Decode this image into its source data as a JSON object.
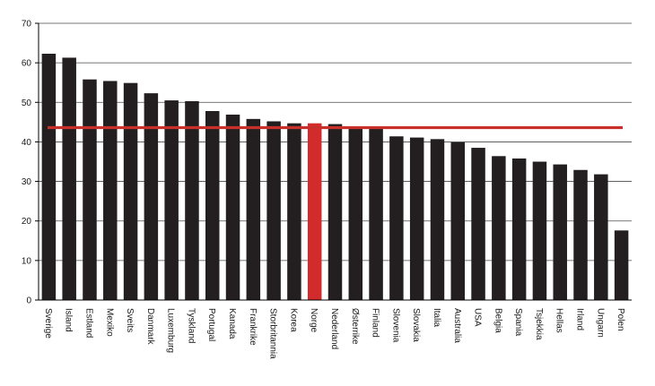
{
  "chart_data": {
    "type": "bar",
    "categories": [
      "Sverige",
      "Island",
      "Estland",
      "Mexiko",
      "Sveits",
      "Danmark",
      "Luxemburg",
      "Tyskland",
      "Portugal",
      "Kanada",
      "Frankrike",
      "Storbritannia",
      "Korea",
      "Norge",
      "Nederland",
      "Østerrike",
      "Finland",
      "Slovenia",
      "Slovakia",
      "Italia",
      "Australia",
      "USA",
      "Belgia",
      "Spania",
      "Tsjekkia",
      "Hellas",
      "Irland",
      "Ungarn",
      "Polen"
    ],
    "values": [
      62.3,
      61.3,
      55.8,
      55.4,
      54.9,
      52.3,
      50.5,
      50.3,
      47.8,
      46.9,
      45.8,
      45.2,
      44.7,
      44.7,
      44.5,
      43.8,
      43.4,
      41.4,
      41.1,
      40.7,
      39.9,
      38.5,
      36.4,
      35.8,
      35.0,
      34.3,
      32.9,
      31.8,
      17.6
    ],
    "highlight_category": "Norge",
    "reference_line": 43.6,
    "ylim": [
      0,
      70
    ],
    "yticks": [
      0,
      10,
      20,
      30,
      40,
      50,
      60,
      70
    ],
    "grid": true,
    "title": "",
    "xlabel": "",
    "ylabel": "",
    "colors": {
      "bar": "#231f20",
      "highlight_bar": "#d22b2b",
      "reference_line": "#c9302c",
      "grid": "#4a4a4a",
      "axis": "#000000"
    }
  }
}
